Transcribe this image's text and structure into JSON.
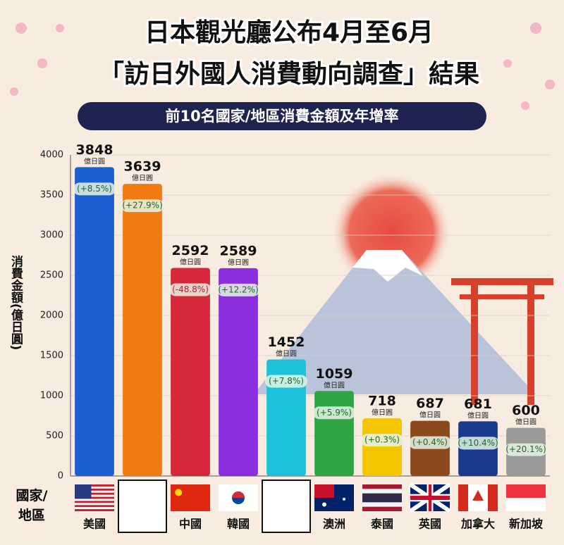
{
  "chart_data": {
    "type": "bar",
    "title": [
      "日本觀光廳公布4月至6月",
      "「訪日外國人消費動向調查」結果"
    ],
    "subtitle": "前10名國家/地區消費金額及年增率",
    "y_label": "消費金額(億日圓)",
    "x_label": "國家/地區",
    "value_unit": "億日圓",
    "categories": [
      "美國",
      null,
      "中國",
      "韓國",
      null,
      "澳洲",
      "泰國",
      "英國",
      "加拿大",
      "新加坡"
    ],
    "values": [
      3848,
      3639,
      2592,
      2589,
      1452,
      1059,
      718,
      687,
      681,
      600
    ],
    "colors": [
      "#1c5fd2",
      "#f27a12",
      "#d6283a",
      "#8a2ee0",
      "#1cc2da",
      "#2ea444",
      "#f4c600",
      "#8c4a1c",
      "#1a3a8c",
      "#9a9a9a"
    ],
    "growth": {
      "values": [
        8.5,
        27.9,
        -48.8,
        12.2,
        7.8,
        5.9,
        0.3,
        0.4,
        10.4,
        20.1
      ],
      "value_labels": [
        "(+8.5%)",
        "(+27.9%)",
        "(-48.8%)",
        "(+12.2%)",
        "(+7.8%)",
        "(+5.9%)",
        "(+0.3%)",
        "(+0.4%)",
        "(+10.4%)",
        "(+20.1%)"
      ]
    },
    "ylim": [
      0,
      4000
    ],
    "yticks": [
      0,
      500,
      1000,
      1500,
      2000,
      2500,
      3000,
      3500,
      4000
    ],
    "grid": true
  }
}
